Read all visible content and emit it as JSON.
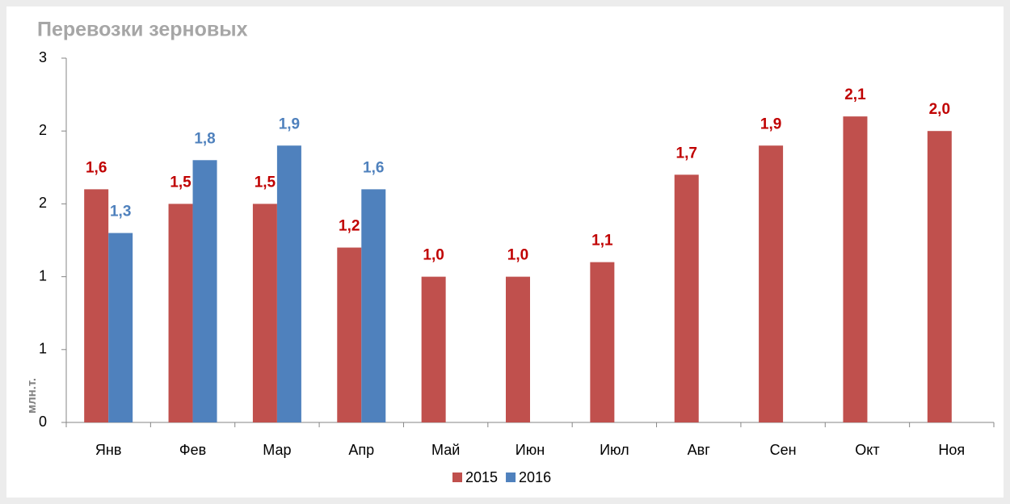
{
  "chart_data": {
    "type": "bar",
    "title": "Перевозки зерновых",
    "ylabel": "млн.т.",
    "categories": [
      "Янв",
      "Фев",
      "Мар",
      "Апр",
      "Май",
      "Июн",
      "Июл",
      "Авг",
      "Сен",
      "Окт",
      "Ноя"
    ],
    "series": [
      {
        "name": "2015",
        "color": "#c0504d",
        "label_color": "#c00000",
        "values": [
          1.6,
          1.5,
          1.5,
          1.2,
          1.0,
          1.0,
          1.1,
          1.7,
          1.9,
          2.1,
          2.0
        ],
        "value_labels": [
          "1,6",
          "1,5",
          "1,5",
          "1,2",
          "1,0",
          "1,0",
          "1,1",
          "1,7",
          "1,9",
          "2,1",
          "2,0"
        ]
      },
      {
        "name": "2016",
        "color": "#4f81bd",
        "label_color": "#4f81bd",
        "values": [
          1.3,
          1.8,
          1.9,
          1.6,
          null,
          null,
          null,
          null,
          null,
          null,
          null
        ],
        "value_labels": [
          "1,3",
          "1,8",
          "1,9",
          "1,6",
          null,
          null,
          null,
          null,
          null,
          null,
          null
        ]
      }
    ],
    "ylim": [
      0,
      2.5
    ],
    "yticks": [
      0,
      {
        "value": 0.5,
        "label": "1"
      },
      1,
      {
        "value": 1.5,
        "label": "2"
      },
      2,
      {
        "value": 2.5,
        "label": "3"
      }
    ],
    "grid": false,
    "legend": "bottom"
  }
}
